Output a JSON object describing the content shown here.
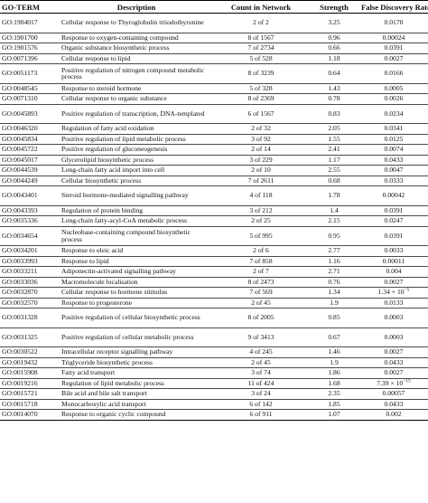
{
  "table": {
    "headers": {
      "go_term": "GO-TERM",
      "description": "Description",
      "count": "Count in Network",
      "strength": "Strength",
      "fdr": "False Discovery Rate"
    },
    "rows": [
      {
        "id": "GO:1904017",
        "desc": "Cellular response to Thyroglobulin triiodothyronine",
        "count": "2 of 2",
        "strength": "3.25",
        "fdr": "0.0170"
      },
      {
        "id": "GO:1901700",
        "desc": "Response to oxygen-containing compound",
        "count": "8 of 1567",
        "strength": "0.96",
        "fdr": "0.00024"
      },
      {
        "id": "GO:1901576",
        "desc": "Organic substance biosynthetic process",
        "count": "7 of 2734",
        "strength": "0.66",
        "fdr": "0.0391"
      },
      {
        "id": "GO:0071396",
        "desc": "Cellular response to lipid",
        "count": "5 of 528",
        "strength": "1.18",
        "fdr": "0.0027"
      },
      {
        "id": "GO:0051173",
        "desc": "Positive regulation of nitrogen compound metabolic process",
        "count": "8 of 3239",
        "strength": "0.64",
        "fdr": "0.0166"
      },
      {
        "id": "GO:0048545",
        "desc": "Response to steroid hormone",
        "count": "5 of 328",
        "strength": "1.43",
        "fdr": "0.0005"
      },
      {
        "id": "GO:0071310",
        "desc": "Cellular response to organic substance",
        "count": "8 of 2369",
        "strength": "0.78",
        "fdr": "0.0026"
      },
      {
        "id": "GO:0045893",
        "desc": "Positive regulation of transcription, DNA-templated",
        "count": "6 of 1567",
        "strength": "0.83",
        "fdr": "0.0234"
      },
      {
        "id": "GO:0046320",
        "desc": "Regulation of fatty acid oxidation",
        "count": "2 of 32",
        "strength": "2.05",
        "fdr": "0.0341"
      },
      {
        "id": "GO:0045834",
        "desc": "Positive regulation of lipid metabolic process",
        "count": "3 of 92",
        "strength": "1.55",
        "fdr": "0.0125"
      },
      {
        "id": "GO:0045722",
        "desc": "Positive regulation of gluconeogenesis",
        "count": "2 of 14",
        "strength": "2.41",
        "fdr": "0.0074"
      },
      {
        "id": "GO:0045017",
        "desc": "Glycerolipid biosynthetic process",
        "count": "3 of 229",
        "strength": "1.17",
        "fdr": "0.0433"
      },
      {
        "id": "GO:0044539",
        "desc": "Long-chain fatty acid import into cell",
        "count": "2 of 10",
        "strength": "2.55",
        "fdr": "0.0047"
      },
      {
        "id": "GO:0044249",
        "desc": "Cellular biosynthetic process",
        "count": "7 of 2611",
        "strength": "0.68",
        "fdr": "0.0333"
      },
      {
        "id": "GO:0043401",
        "desc": "Steroid hormone-mediated signalling pathway",
        "count": "4 of 118",
        "strength": "1.78",
        "fdr": "0.00042"
      },
      {
        "id": "GO:0043393",
        "desc": "Regulation of protein binding",
        "count": "3 of 212",
        "strength": "1.4",
        "fdr": "0.0391"
      },
      {
        "id": "GO:0035336",
        "desc": "Long-chain fatty-acyl-CoA metabolic process",
        "count": "2 of 25",
        "strength": "2.15",
        "fdr": "0.0247"
      },
      {
        "id": "GO:0034654",
        "desc": "Nucleobase-containing compound biosynthetic process",
        "count": "5 of 995",
        "strength": "0.95",
        "fdr": "0.0391"
      },
      {
        "id": "GO:0034201",
        "desc": "Response to oleic acid",
        "count": "2 of 6",
        "strength": "2.77",
        "fdr": "0.0033"
      },
      {
        "id": "GO:0033993",
        "desc": "Response to lipid",
        "count": "7 of 858",
        "strength": "1.16",
        "fdr": "0.00011"
      },
      {
        "id": "GO:0033211",
        "desc": "Adiponectin-activated signalling pathway",
        "count": "2 of 7",
        "strength": "2.71",
        "fdr": "0.004"
      },
      {
        "id": "GO:0033036",
        "desc": "Macromolecule localisation",
        "count": "8 of 2473",
        "strength": "0.76",
        "fdr": "0.0027"
      },
      {
        "id": "GO:0032870",
        "desc": "Cellular response to hormone stimulus",
        "count": "7 of 569",
        "strength": "1.34",
        "fdr": "1.34 × 10",
        "fdr_exp": "−5"
      },
      {
        "id": "GO:0032570",
        "desc": "Response to progesterone",
        "count": "2 of 45",
        "strength": "1.9",
        "fdr": "0.0133"
      },
      {
        "id": "GO:0031328",
        "desc": "Positive regulation of cellular biosynthetic process",
        "count": "8 of 2005",
        "strength": "0.85",
        "fdr": "0.0003"
      },
      {
        "id": "GO:0031325",
        "desc": "Positive regulation of cellular metabolic process",
        "count": "9 of 3413",
        "strength": "0.67",
        "fdr": "0.0003"
      },
      {
        "id": "GO:0030522",
        "desc": "Intracellular receptor signalling pathway",
        "count": "4 of 245",
        "strength": "1.46",
        "fdr": "0.0027"
      },
      {
        "id": "GO:0019432",
        "desc": "Triglyceride biosynthetic process",
        "count": "2 of 45",
        "strength": "1.9",
        "fdr": "0.0433"
      },
      {
        "id": "GO:0015908",
        "desc": "Fatty acid transport",
        "count": "3 of 74",
        "strength": "1.86",
        "fdr": "0.0027"
      },
      {
        "id": "GO:0019216",
        "desc": "Regulation of lipid metabolic process",
        "count": "11 of 424",
        "strength": "1.68",
        "fdr": "7.39 × 10",
        "fdr_exp": "−15"
      },
      {
        "id": "GO:0015721",
        "desc": "Bile acid and bile salt transport",
        "count": "3 of 24",
        "strength": "2.35",
        "fdr": "0.00057"
      },
      {
        "id": "GO:0015718",
        "desc": "Monocarboxylic acid transport",
        "count": "6 of 142",
        "strength": "1.85",
        "fdr": "0.0433"
      },
      {
        "id": "GO:0014070",
        "desc": "Response to organic cyclic compound",
        "count": "6 of 911",
        "strength": "1.07",
        "fdr": "0.002"
      }
    ]
  }
}
